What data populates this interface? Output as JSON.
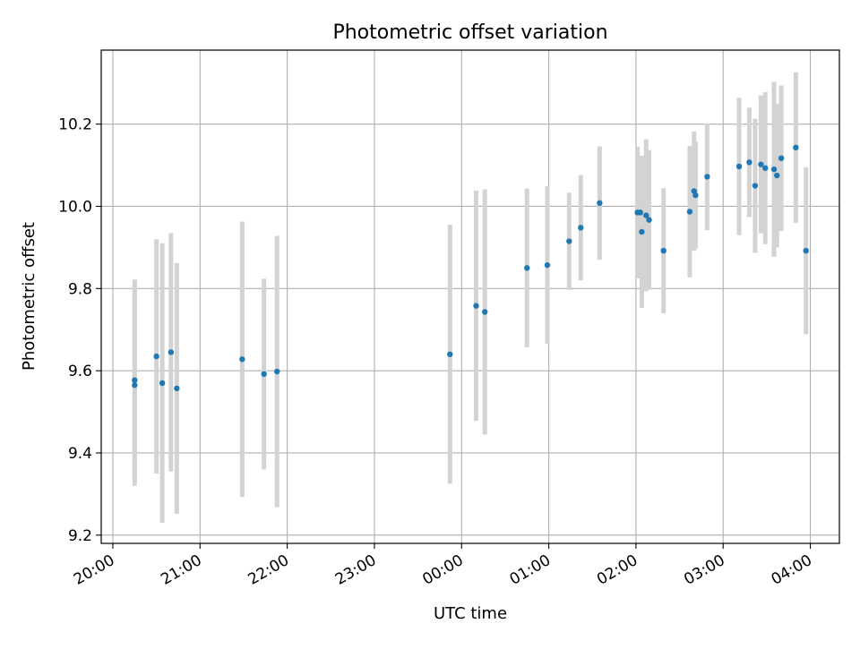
{
  "chart_data": {
    "type": "scatter",
    "title": "Photometric offset variation",
    "xlabel": "UTC time",
    "ylabel": "Photometric offset",
    "x_ticks": [
      "20:00",
      "21:00",
      "22:00",
      "23:00",
      "00:00",
      "01:00",
      "02:00",
      "03:00",
      "04:00"
    ],
    "y_ticks": [
      "9.2",
      "9.4",
      "9.6",
      "9.8",
      "10.0",
      "10.2"
    ],
    "xlim": [
      "19:52",
      "04:20"
    ],
    "ylim": [
      9.18,
      10.38
    ],
    "grid": true,
    "colors": {
      "points": "#1f77b4",
      "errorbars": "#d3d3d3",
      "grid": "#b0b0b0"
    },
    "series": [
      {
        "points": [
          {
            "t": "20:15",
            "y": 9.577,
            "err": 0.245
          },
          {
            "t": "20:15",
            "y": 9.565,
            "err": 0.245
          },
          {
            "t": "20:30",
            "y": 9.635,
            "err": 0.285
          },
          {
            "t": "20:34",
            "y": 9.57,
            "err": 0.34
          },
          {
            "t": "20:40",
            "y": 9.645,
            "err": 0.29
          },
          {
            "t": "20:44",
            "y": 9.557,
            "err": 0.305
          },
          {
            "t": "21:29",
            "y": 9.628,
            "err": 0.335
          },
          {
            "t": "21:44",
            "y": 9.592,
            "err": 0.232
          },
          {
            "t": "21:53",
            "y": 9.598,
            "err": 0.33
          },
          {
            "t": "23:52",
            "y": 9.64,
            "err": 0.315
          },
          {
            "t": "00:10",
            "y": 9.758,
            "err": 0.28
          },
          {
            "t": "00:16",
            "y": 9.743,
            "err": 0.298
          },
          {
            "t": "00:45",
            "y": 9.85,
            "err": 0.193
          },
          {
            "t": "00:59",
            "y": 9.857,
            "err": 0.192
          },
          {
            "t": "01:14",
            "y": 9.915,
            "err": 0.118
          },
          {
            "t": "01:22",
            "y": 9.948,
            "err": 0.128
          },
          {
            "t": "01:35",
            "y": 10.008,
            "err": 0.138
          },
          {
            "t": "02:01",
            "y": 9.985,
            "err": 0.16
          },
          {
            "t": "02:03",
            "y": 9.985,
            "err": 0.13
          },
          {
            "t": "02:04",
            "y": 9.938,
            "err": 0.185
          },
          {
            "t": "02:07",
            "y": 9.978,
            "err": 0.185
          },
          {
            "t": "02:09",
            "y": 9.967,
            "err": 0.17
          },
          {
            "t": "02:19",
            "y": 9.892,
            "err": 0.152
          },
          {
            "t": "02:37",
            "y": 9.987,
            "err": 0.16
          },
          {
            "t": "02:40",
            "y": 10.037,
            "err": 0.145
          },
          {
            "t": "02:41",
            "y": 10.027,
            "err": 0.13
          },
          {
            "t": "02:49",
            "y": 10.072,
            "err": 0.13
          },
          {
            "t": "03:11",
            "y": 10.097,
            "err": 0.167
          },
          {
            "t": "03:18",
            "y": 10.107,
            "err": 0.133
          },
          {
            "t": "03:22",
            "y": 10.05,
            "err": 0.163
          },
          {
            "t": "03:26",
            "y": 10.102,
            "err": 0.168
          },
          {
            "t": "03:29",
            "y": 10.093,
            "err": 0.185
          },
          {
            "t": "03:35",
            "y": 10.09,
            "err": 0.213
          },
          {
            "t": "03:37",
            "y": 10.075,
            "err": 0.175
          },
          {
            "t": "03:40",
            "y": 10.117,
            "err": 0.177
          },
          {
            "t": "03:50",
            "y": 10.143,
            "err": 0.183
          },
          {
            "t": "03:57",
            "y": 9.892,
            "err": 0.203
          }
        ]
      }
    ]
  }
}
